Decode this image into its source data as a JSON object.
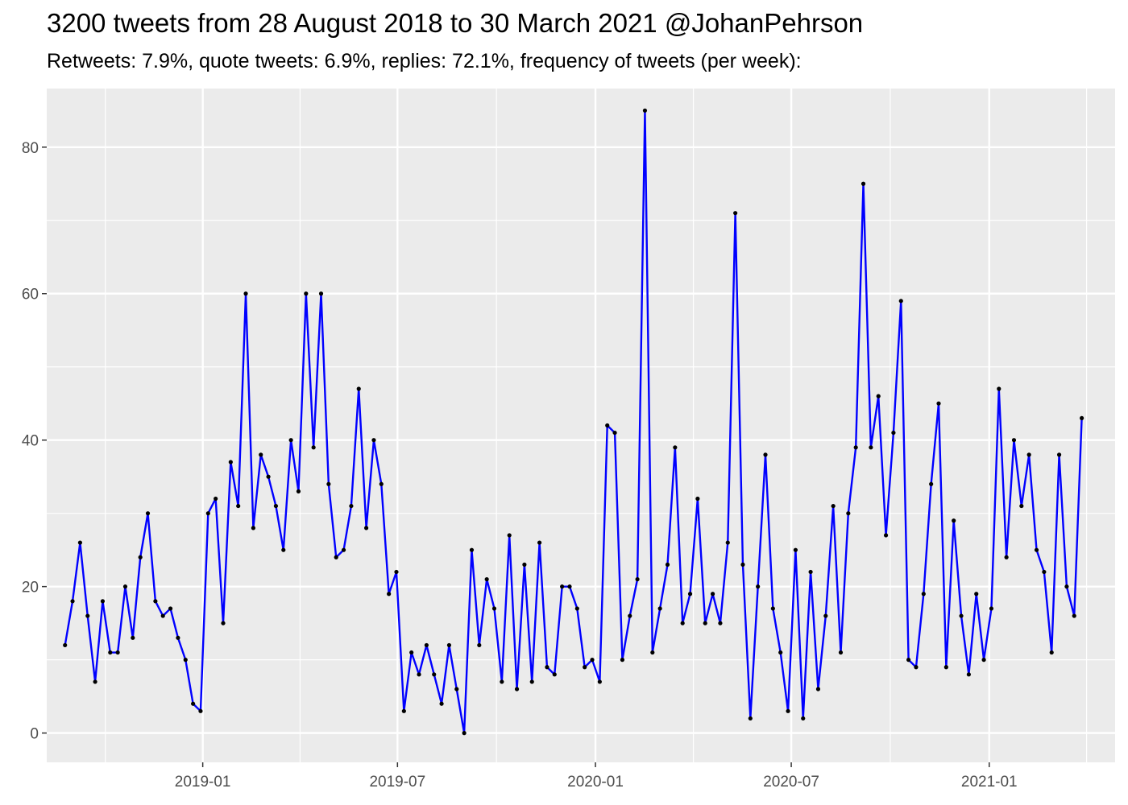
{
  "chart_data": {
    "type": "line",
    "title": "3200 tweets from 28 August 2018 to 30 March 2021 @JohanPehrson",
    "subtitle": "Retweets: 7.9%, quote tweets: 6.9%, replies: 72.1%, frequency of tweets (per week):",
    "xlabel": "",
    "ylabel": "",
    "x_axis": {
      "type": "date",
      "range": [
        "2018-08-09",
        "2021-04-28"
      ],
      "ticks": [
        "2019-01-01",
        "2019-07-01",
        "2020-01-01",
        "2020-07-01",
        "2021-01-01"
      ],
      "tick_labels": [
        "2019-01",
        "2019-07",
        "2020-01",
        "2020-07",
        "2021-01"
      ]
    },
    "y_axis": {
      "range": [
        -4,
        88
      ],
      "ticks": [
        0,
        20,
        40,
        60,
        80
      ],
      "tick_labels": [
        "0",
        "20",
        "40",
        "60",
        "80"
      ]
    },
    "grid": true,
    "legend": "none",
    "colors": {
      "line": "#0000ff",
      "points": "#000000",
      "panel": "#ebebeb",
      "grid": "#ffffff"
    },
    "series": [
      {
        "x": [
          "2018-08-26",
          "2018-09-02",
          "2018-09-09",
          "2018-09-16",
          "2018-09-23",
          "2018-09-30",
          "2018-10-07",
          "2018-10-14",
          "2018-10-21",
          "2018-10-28",
          "2018-11-04",
          "2018-11-11",
          "2018-11-18",
          "2018-11-25",
          "2018-12-02",
          "2018-12-09",
          "2018-12-16",
          "2018-12-23",
          "2018-12-30",
          "2019-01-06",
          "2019-01-13",
          "2019-01-20",
          "2019-01-27",
          "2019-02-03",
          "2019-02-10",
          "2019-02-17",
          "2019-02-24",
          "2019-03-03",
          "2019-03-10",
          "2019-03-17",
          "2019-03-24",
          "2019-03-31",
          "2019-04-07",
          "2019-04-14",
          "2019-04-21",
          "2019-04-28",
          "2019-05-05",
          "2019-05-12",
          "2019-05-19",
          "2019-05-26",
          "2019-06-02",
          "2019-06-09",
          "2019-06-16",
          "2019-06-23",
          "2019-06-30",
          "2019-07-07",
          "2019-07-14",
          "2019-07-21",
          "2019-07-28",
          "2019-08-04",
          "2019-08-11",
          "2019-08-18",
          "2019-08-25",
          "2019-09-01",
          "2019-09-08",
          "2019-09-15",
          "2019-09-22",
          "2019-09-29",
          "2019-10-06",
          "2019-10-13",
          "2019-10-20",
          "2019-10-27",
          "2019-11-03",
          "2019-11-10",
          "2019-11-17",
          "2019-11-24",
          "2019-12-01",
          "2019-12-08",
          "2019-12-15",
          "2019-12-22",
          "2019-12-29",
          "2020-01-05",
          "2020-01-12",
          "2020-01-19",
          "2020-01-26",
          "2020-02-02",
          "2020-02-09",
          "2020-02-16",
          "2020-02-23",
          "2020-03-01",
          "2020-03-08",
          "2020-03-15",
          "2020-03-22",
          "2020-03-29",
          "2020-04-05",
          "2020-04-12",
          "2020-04-19",
          "2020-04-26",
          "2020-05-03",
          "2020-05-10",
          "2020-05-17",
          "2020-05-24",
          "2020-05-31",
          "2020-06-07",
          "2020-06-14",
          "2020-06-21",
          "2020-06-28",
          "2020-07-05",
          "2020-07-12",
          "2020-07-19",
          "2020-07-26",
          "2020-08-02",
          "2020-08-09",
          "2020-08-16",
          "2020-08-23",
          "2020-08-30",
          "2020-09-06",
          "2020-09-13",
          "2020-09-20",
          "2020-09-27",
          "2020-10-04",
          "2020-10-11",
          "2020-10-18",
          "2020-10-25",
          "2020-11-01",
          "2020-11-08",
          "2020-11-15",
          "2020-11-22",
          "2020-11-29",
          "2020-12-06",
          "2020-12-13",
          "2020-12-20",
          "2020-12-27",
          "2021-01-03",
          "2021-01-10",
          "2021-01-17",
          "2021-01-24",
          "2021-01-31",
          "2021-02-07",
          "2021-02-14",
          "2021-02-21",
          "2021-02-28",
          "2021-03-07",
          "2021-03-14",
          "2021-03-21",
          "2021-03-28"
        ],
        "y": [
          12,
          18,
          26,
          16,
          7,
          18,
          11,
          11,
          20,
          13,
          24,
          30,
          18,
          16,
          17,
          13,
          10,
          4,
          3,
          30,
          32,
          15,
          37,
          31,
          60,
          28,
          38,
          35,
          31,
          25,
          40,
          33,
          60,
          39,
          60,
          34,
          24,
          25,
          31,
          47,
          28,
          40,
          34,
          19,
          22,
          3,
          11,
          8,
          12,
          8,
          4,
          12,
          6,
          0,
          25,
          12,
          21,
          17,
          7,
          27,
          6,
          23,
          7,
          26,
          9,
          8,
          20,
          20,
          17,
          9,
          10,
          7,
          42,
          41,
          10,
          16,
          21,
          85,
          11,
          17,
          23,
          39,
          15,
          19,
          32,
          15,
          19,
          15,
          26,
          71,
          23,
          2,
          20,
          38,
          17,
          11,
          3,
          25,
          2,
          22,
          6,
          16,
          31,
          11,
          30,
          39,
          75,
          39,
          46,
          27,
          41,
          59,
          10,
          9,
          19,
          34,
          45,
          9,
          29,
          16,
          8,
          19,
          10,
          17,
          47,
          24,
          40,
          31,
          38,
          25,
          22,
          11,
          38,
          20,
          16,
          43
        ]
      }
    ]
  }
}
